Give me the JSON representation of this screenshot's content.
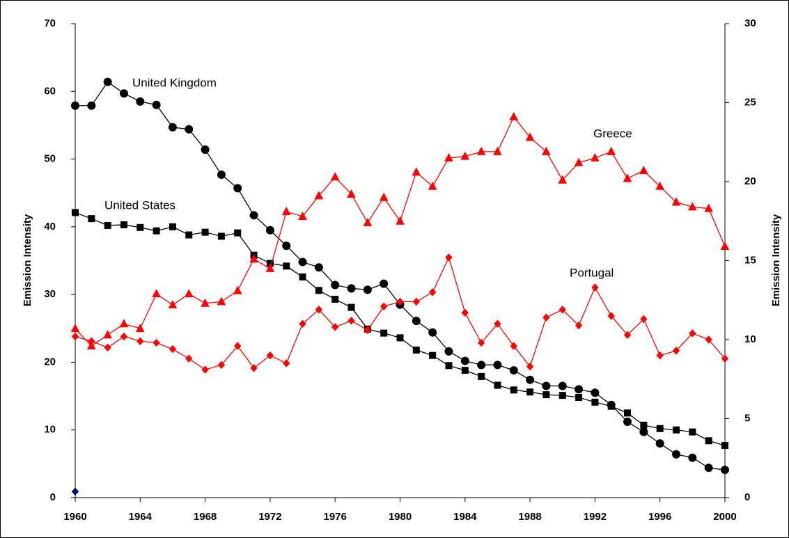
{
  "chart_data": {
    "type": "line",
    "x": [
      1960,
      1961,
      1962,
      1963,
      1964,
      1965,
      1966,
      1967,
      1968,
      1969,
      1970,
      1971,
      1972,
      1973,
      1974,
      1975,
      1976,
      1977,
      1978,
      1979,
      1980,
      1981,
      1982,
      1983,
      1984,
      1985,
      1986,
      1987,
      1988,
      1989,
      1990,
      1991,
      1992,
      1993,
      1994,
      1995,
      1996,
      1997,
      1998,
      1999,
      2000
    ],
    "xlim": [
      1960,
      2000
    ],
    "xticks": [
      1960,
      1964,
      1968,
      1972,
      1976,
      1980,
      1984,
      1988,
      1992,
      1996,
      2000
    ],
    "ylim": [
      0,
      70
    ],
    "yticks": [
      0,
      10,
      20,
      30,
      40,
      50,
      60,
      70
    ],
    "y2lim": [
      0,
      30
    ],
    "y2ticks": [
      0,
      5,
      10,
      15,
      20,
      25,
      30
    ],
    "ylabel": "Emission Intensity",
    "y2label": "Emission Intensity",
    "series": [
      {
        "name": "United Kingdom",
        "color": "#000000",
        "marker": "circle",
        "values": [
          57.9,
          57.9,
          61.4,
          59.7,
          58.5,
          58.0,
          54.7,
          54.4,
          51.4,
          47.7,
          45.7,
          41.7,
          39.5,
          37.2,
          34.8,
          34.0,
          31.4,
          30.9,
          30.7,
          31.6,
          28.5,
          26.1,
          24.4,
          21.6,
          20.2,
          19.6,
          19.6,
          18.8,
          17.4,
          16.5,
          16.5,
          16.0,
          15.5,
          13.7,
          11.2,
          9.7,
          8.0,
          6.4,
          5.9,
          4.4,
          4.1
        ]
      },
      {
        "name": "United States",
        "color": "#000000",
        "marker": "square",
        "values": [
          42.1,
          41.2,
          40.2,
          40.3,
          39.9,
          39.4,
          40.0,
          38.8,
          39.2,
          38.6,
          39.1,
          35.8,
          34.6,
          34.2,
          32.6,
          30.6,
          29.3,
          28.1,
          24.9,
          24.3,
          23.6,
          21.8,
          21.0,
          19.5,
          18.8,
          17.9,
          16.6,
          15.9,
          15.6,
          15.2,
          15.1,
          14.8,
          14.1,
          13.5,
          12.5,
          10.7,
          10.2,
          10.0,
          9.7,
          8.4,
          7.7
        ]
      },
      {
        "name": "Greece",
        "color": "#ff0000",
        "marker": "triangle",
        "axis": "y2",
        "values": [
          10.7,
          9.6,
          10.3,
          11.0,
          10.7,
          12.9,
          12.2,
          12.9,
          12.3,
          12.4,
          13.1,
          15.1,
          14.5,
          18.1,
          17.8,
          19.1,
          20.3,
          19.2,
          17.4,
          19.0,
          17.5,
          20.6,
          19.7,
          21.5,
          21.6,
          21.9,
          21.9,
          24.1,
          22.8,
          21.9,
          20.1,
          21.2,
          21.5,
          21.9,
          20.2,
          20.7,
          19.7,
          18.7,
          18.4,
          18.3,
          15.9
        ]
      },
      {
        "name": "Portugal",
        "color": "#ff0000",
        "marker": "diamond",
        "axis": "y2",
        "values": [
          10.2,
          9.9,
          9.5,
          10.2,
          9.9,
          9.8,
          9.4,
          8.8,
          8.1,
          8.4,
          9.6,
          8.2,
          9.0,
          8.5,
          11.0,
          11.9,
          10.8,
          11.2,
          10.6,
          12.1,
          12.4,
          12.4,
          13.0,
          15.2,
          11.7,
          9.8,
          11.0,
          9.6,
          8.3,
          11.4,
          11.9,
          10.9,
          13.3,
          11.5,
          10.3,
          11.3,
          9.0,
          9.3,
          10.4,
          10.0,
          8.8
        ]
      },
      {
        "color": "#000080",
        "marker": "diamond",
        "values": [
          0.9,
          null,
          null,
          null,
          null,
          null,
          null,
          null,
          null,
          null,
          null,
          null,
          null,
          null,
          null,
          null,
          null,
          null,
          null,
          null,
          null,
          null,
          null,
          null,
          null,
          null,
          null,
          null,
          null,
          null,
          null,
          null,
          null,
          null,
          null,
          null,
          null,
          null,
          null,
          null,
          null
        ]
      }
    ]
  }
}
